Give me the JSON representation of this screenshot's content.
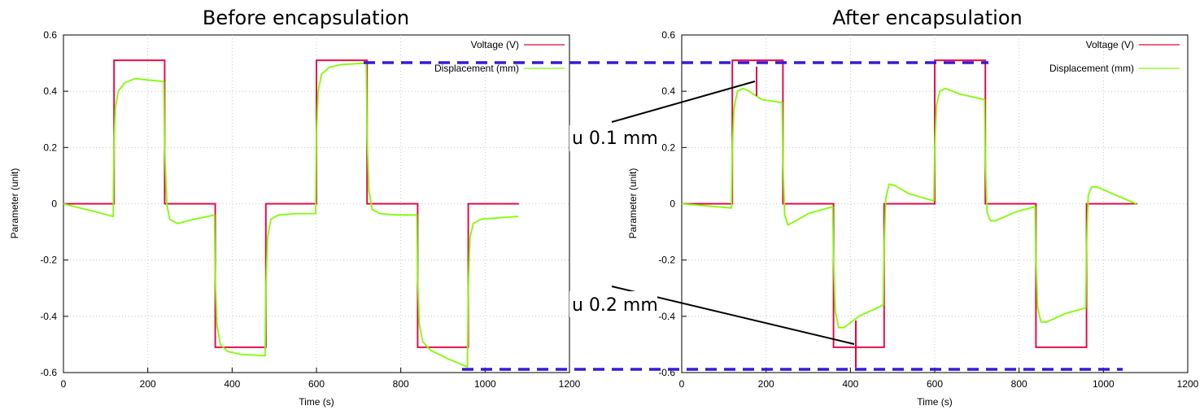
{
  "chart_data": [
    {
      "type": "line",
      "title": "Before encapsulation",
      "xlabel": "Time (s)",
      "ylabel": "Parameter (unit)",
      "xlim": [
        0,
        1200
      ],
      "ylim": [
        -0.6,
        0.6
      ],
      "xticks": [
        "0",
        "200",
        "400",
        "600",
        "800",
        "1000",
        "1200"
      ],
      "yticks": [
        "-0.6",
        "-0.4",
        "-0.2",
        "0",
        "0.2",
        "0.4",
        "0.6"
      ],
      "grid": true,
      "legend": "top-right",
      "series": [
        {
          "name": "Voltage (V)",
          "color": "#e8003a",
          "x": [
            0,
            120,
            120,
            240,
            240,
            360,
            360,
            480,
            480,
            600,
            600,
            720,
            720,
            840,
            840,
            960,
            960,
            1080
          ],
          "y": [
            0,
            0,
            0.51,
            0.51,
            0,
            0,
            -0.51,
            -0.51,
            0,
            0,
            0.51,
            0.51,
            0,
            0,
            -0.51,
            -0.51,
            0,
            0
          ]
        },
        {
          "name": "Displacement (mm)",
          "color": "#7fff00",
          "x": [
            0,
            40,
            80,
            118,
            120,
            123,
            130,
            145,
            170,
            200,
            238,
            240,
            245,
            252,
            270,
            310,
            358,
            360,
            364,
            372,
            390,
            420,
            478,
            480,
            484,
            492,
            510,
            550,
            598,
            600,
            604,
            612,
            630,
            660,
            718,
            720,
            724,
            732,
            750,
            790,
            838,
            840,
            844,
            852,
            870,
            910,
            958,
            960,
            964,
            972,
            990,
            1030,
            1078
          ],
          "y": [
            0,
            -0.015,
            -0.03,
            -0.045,
            0.22,
            0.34,
            0.4,
            0.43,
            0.445,
            0.44,
            0.435,
            0.2,
            0.0,
            -0.055,
            -0.07,
            -0.055,
            -0.04,
            -0.27,
            -0.43,
            -0.5,
            -0.525,
            -0.535,
            -0.54,
            -0.3,
            -0.12,
            -0.055,
            -0.04,
            -0.035,
            -0.035,
            0.25,
            0.4,
            0.46,
            0.485,
            0.495,
            0.5,
            0.25,
            0.05,
            -0.02,
            -0.035,
            -0.04,
            -0.04,
            -0.27,
            -0.43,
            -0.49,
            -0.52,
            -0.55,
            -0.58,
            -0.3,
            -0.12,
            -0.07,
            -0.055,
            -0.05,
            -0.045
          ]
        }
      ]
    },
    {
      "type": "line",
      "title": "After encapsulation",
      "xlabel": "Time (s)",
      "ylabel": "Parameter (unit)",
      "xlim": [
        0,
        1200
      ],
      "ylim": [
        -0.6,
        0.6
      ],
      "xticks": [
        "0",
        "200",
        "400",
        "600",
        "800",
        "1000",
        "1200"
      ],
      "yticks": [
        "-0.6",
        "-0.4",
        "-0.2",
        "0",
        "0.2",
        "0.4",
        "0.6"
      ],
      "grid": true,
      "legend": "top-right",
      "series": [
        {
          "name": "Voltage (V)",
          "color": "#e8003a",
          "x": [
            0,
            120,
            120,
            240,
            240,
            360,
            360,
            480,
            480,
            600,
            600,
            720,
            720,
            840,
            840,
            960,
            960,
            1080
          ],
          "y": [
            0,
            0,
            0.51,
            0.51,
            0,
            0,
            -0.51,
            -0.51,
            0,
            0,
            0.51,
            0.51,
            0,
            0,
            -0.51,
            -0.51,
            0,
            0
          ]
        },
        {
          "name": "Displacement (mm)",
          "color": "#7fff00",
          "x": [
            0,
            40,
            80,
            118,
            120,
            124,
            132,
            145,
            160,
            190,
            238,
            240,
            244,
            252,
            265,
            300,
            358,
            360,
            364,
            372,
            385,
            420,
            478,
            480,
            484,
            492,
            505,
            540,
            598,
            600,
            604,
            612,
            625,
            660,
            718,
            720,
            724,
            732,
            745,
            790,
            838,
            840,
            844,
            852,
            865,
            910,
            958,
            960,
            964,
            972,
            985,
            1030,
            1078
          ],
          "y": [
            0,
            -0.005,
            -0.01,
            -0.015,
            0.2,
            0.34,
            0.4,
            0.41,
            0.4,
            0.37,
            0.36,
            0.15,
            -0.04,
            -0.075,
            -0.065,
            -0.035,
            -0.01,
            -0.2,
            -0.38,
            -0.44,
            -0.44,
            -0.4,
            -0.36,
            -0.15,
            0.02,
            0.07,
            0.065,
            0.035,
            0.01,
            0.2,
            0.35,
            0.4,
            0.41,
            0.39,
            0.37,
            0.15,
            -0.03,
            -0.06,
            -0.06,
            -0.03,
            -0.01,
            -0.2,
            -0.37,
            -0.42,
            -0.42,
            -0.39,
            -0.37,
            -0.15,
            0.03,
            0.06,
            0.06,
            0.03,
            0.0
          ]
        }
      ]
    }
  ],
  "annotations": {
    "top_note": "u 0.1 mm",
    "bottom_note": "u 0.2 mm",
    "reference_line_color": "#3a18d8",
    "marker_color": "#e8003a"
  }
}
